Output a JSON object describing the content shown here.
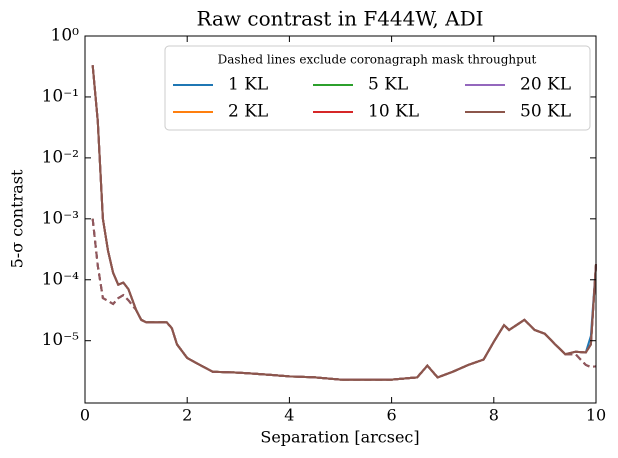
{
  "chart_data": {
    "type": "line",
    "title": "Raw contrast in F444W, ADI",
    "xlabel": "Separation [arcsec]",
    "ylabel": "5-σ contrast",
    "legend_title": "Dashed lines exclude coronagraph mask throughput",
    "legend_loc": "upper right",
    "legend_ncol": 3,
    "yscale": "log",
    "xlim": [
      0,
      10
    ],
    "xticks": [
      0,
      2,
      4,
      6,
      8,
      10
    ],
    "ylim": [
      9.5e-07,
      1
    ],
    "yticks": [
      {
        "value": 1,
        "label": "10⁰"
      },
      {
        "value": 0.1,
        "label": "10⁻¹"
      },
      {
        "value": 0.01,
        "label": "10⁻²"
      },
      {
        "value": 0.001,
        "label": "10⁻³"
      },
      {
        "value": 0.0001,
        "label": "10⁻⁴"
      },
      {
        "value": 1e-05,
        "label": "10⁻⁵"
      }
    ],
    "x": [
      0.15,
      0.25,
      0.35,
      0.45,
      0.55,
      0.65,
      0.75,
      0.85,
      1.0,
      1.1,
      1.2,
      1.4,
      1.6,
      1.7,
      1.8,
      2.0,
      2.2,
      2.5,
      3,
      3.5,
      4,
      4.5,
      5,
      5.5,
      6,
      6.5,
      6.7,
      6.9,
      7.2,
      7.5,
      7.8,
      8.0,
      8.2,
      8.3,
      8.6,
      8.8,
      9.0,
      9.2,
      9.4,
      9.6,
      9.8,
      9.9,
      10.0
    ],
    "series": [
      {
        "name": "1 KL",
        "color": "#1f77b4",
        "values": [
          0.33,
          0.04,
          0.001,
          0.0003,
          0.00013,
          8.3e-05,
          9e-05,
          7e-05,
          3.2e-05,
          2.2e-05,
          2e-05,
          2e-05,
          2e-05,
          1.6e-05,
          8.7e-06,
          5.2e-06,
          4.2e-06,
          3.1e-06,
          3e-06,
          2.8e-06,
          2.6e-06,
          2.5e-06,
          2.3e-06,
          2.3e-06,
          2.3e-06,
          2.5e-06,
          3.9e-06,
          2.5e-06,
          3.1e-06,
          4e-06,
          4.9e-06,
          9.6e-06,
          1.8e-05,
          1.5e-05,
          2.2e-05,
          1.5e-05,
          1.3e-05,
          8.7e-06,
          6e-06,
          6.6e-06,
          6.4e-06,
          1.2e-05,
          0.00018
        ],
        "dashed_values": [
          0.001,
          0.00017,
          5e-05,
          4.5e-05,
          4e-05,
          5e-05,
          5.6e-05,
          4.6e-05,
          3.2e-05,
          2.2e-05,
          2e-05,
          2e-05,
          2e-05,
          1.6e-05,
          8.7e-06,
          5.2e-06,
          4.2e-06,
          3.1e-06,
          3e-06,
          2.8e-06,
          2.6e-06,
          2.5e-06,
          2.3e-06,
          2.3e-06,
          2.3e-06,
          2.5e-06,
          3.9e-06,
          2.5e-06,
          3.1e-06,
          4e-06,
          4.9e-06,
          9.6e-06,
          1.8e-05,
          1.5e-05,
          2.2e-05,
          1.5e-05,
          1.3e-05,
          8.7e-06,
          6e-06,
          6e-06,
          4e-06,
          3.7e-06,
          3.8e-06
        ]
      },
      {
        "name": "2 KL",
        "color": "#ff7f0e",
        "values": [
          0.33,
          0.04,
          0.001,
          0.0003,
          0.00013,
          8.3e-05,
          9e-05,
          7e-05,
          3.2e-05,
          2.2e-05,
          2e-05,
          2e-05,
          2e-05,
          1.6e-05,
          8.7e-06,
          5.2e-06,
          4.2e-06,
          3.1e-06,
          3e-06,
          2.8e-06,
          2.6e-06,
          2.5e-06,
          2.3e-06,
          2.3e-06,
          2.3e-06,
          2.5e-06,
          3.9e-06,
          2.5e-06,
          3.1e-06,
          4e-06,
          4.9e-06,
          9.6e-06,
          1.8e-05,
          1.5e-05,
          2.2e-05,
          1.5e-05,
          1.3e-05,
          8.7e-06,
          6e-06,
          6.6e-06,
          6.4e-06,
          8.7e-06,
          0.00018
        ],
        "dashed_values": [
          0.001,
          0.00017,
          5e-05,
          4.5e-05,
          4e-05,
          5e-05,
          5.6e-05,
          4.6e-05,
          3.2e-05,
          2.2e-05,
          2e-05,
          2e-05,
          2e-05,
          1.6e-05,
          8.7e-06,
          5.2e-06,
          4.2e-06,
          3.1e-06,
          3e-06,
          2.8e-06,
          2.6e-06,
          2.5e-06,
          2.3e-06,
          2.3e-06,
          2.3e-06,
          2.5e-06,
          3.9e-06,
          2.5e-06,
          3.1e-06,
          4e-06,
          4.9e-06,
          9.6e-06,
          1.8e-05,
          1.5e-05,
          2.2e-05,
          1.5e-05,
          1.3e-05,
          8.7e-06,
          6e-06,
          6e-06,
          4e-06,
          3.7e-06,
          3.8e-06
        ]
      },
      {
        "name": "5 KL",
        "color": "#2ca02c",
        "values": [
          0.33,
          0.04,
          0.001,
          0.0003,
          0.00013,
          8.3e-05,
          9e-05,
          7e-05,
          3.2e-05,
          2.2e-05,
          2e-05,
          2e-05,
          2e-05,
          1.6e-05,
          8.7e-06,
          5.2e-06,
          4.2e-06,
          3.1e-06,
          3e-06,
          2.8e-06,
          2.6e-06,
          2.5e-06,
          2.3e-06,
          2.3e-06,
          2.3e-06,
          2.5e-06,
          3.9e-06,
          2.5e-06,
          3.1e-06,
          4e-06,
          4.9e-06,
          9.6e-06,
          1.8e-05,
          1.5e-05,
          2.2e-05,
          1.5e-05,
          1.3e-05,
          8.7e-06,
          6e-06,
          6.6e-06,
          6.4e-06,
          8.7e-06,
          0.00018
        ],
        "dashed_values": [
          0.001,
          0.00017,
          5e-05,
          4.5e-05,
          4e-05,
          5e-05,
          5.6e-05,
          4.6e-05,
          3.2e-05,
          2.2e-05,
          2e-05,
          2e-05,
          2e-05,
          1.6e-05,
          8.7e-06,
          5.2e-06,
          4.2e-06,
          3.1e-06,
          3e-06,
          2.8e-06,
          2.6e-06,
          2.5e-06,
          2.3e-06,
          2.3e-06,
          2.3e-06,
          2.5e-06,
          3.9e-06,
          2.5e-06,
          3.1e-06,
          4e-06,
          4.9e-06,
          9.6e-06,
          1.8e-05,
          1.5e-05,
          2.2e-05,
          1.5e-05,
          1.3e-05,
          8.7e-06,
          6e-06,
          6e-06,
          4e-06,
          3.7e-06,
          3.8e-06
        ]
      },
      {
        "name": "10 KL",
        "color": "#d62728",
        "values": [
          0.33,
          0.04,
          0.001,
          0.0003,
          0.00013,
          8.3e-05,
          9e-05,
          7e-05,
          3.2e-05,
          2.2e-05,
          2e-05,
          2e-05,
          2e-05,
          1.6e-05,
          8.7e-06,
          5.2e-06,
          4.2e-06,
          3.1e-06,
          3e-06,
          2.8e-06,
          2.6e-06,
          2.5e-06,
          2.3e-06,
          2.3e-06,
          2.3e-06,
          2.5e-06,
          3.9e-06,
          2.5e-06,
          3.1e-06,
          4e-06,
          4.9e-06,
          9.6e-06,
          1.8e-05,
          1.5e-05,
          2.2e-05,
          1.5e-05,
          1.3e-05,
          8.7e-06,
          6e-06,
          6.6e-06,
          6.4e-06,
          8.7e-06,
          0.00018
        ],
        "dashed_values": [
          0.001,
          0.00017,
          5e-05,
          4.5e-05,
          4e-05,
          5e-05,
          5.6e-05,
          4.6e-05,
          3.2e-05,
          2.2e-05,
          2e-05,
          2e-05,
          2e-05,
          1.6e-05,
          8.7e-06,
          5.2e-06,
          4.2e-06,
          3.1e-06,
          3e-06,
          2.8e-06,
          2.6e-06,
          2.5e-06,
          2.3e-06,
          2.3e-06,
          2.3e-06,
          2.5e-06,
          3.9e-06,
          2.5e-06,
          3.1e-06,
          4e-06,
          4.9e-06,
          9.6e-06,
          1.8e-05,
          1.5e-05,
          2.2e-05,
          1.5e-05,
          1.3e-05,
          8.7e-06,
          6e-06,
          6e-06,
          4e-06,
          3.7e-06,
          3.8e-06
        ]
      },
      {
        "name": "20 KL",
        "color": "#9467bd",
        "values": [
          0.33,
          0.04,
          0.001,
          0.0003,
          0.00013,
          8.3e-05,
          9e-05,
          7e-05,
          3.2e-05,
          2.2e-05,
          2e-05,
          2e-05,
          2e-05,
          1.6e-05,
          8.7e-06,
          5.2e-06,
          4.2e-06,
          3.1e-06,
          3e-06,
          2.8e-06,
          2.6e-06,
          2.5e-06,
          2.3e-06,
          2.3e-06,
          2.3e-06,
          2.5e-06,
          3.9e-06,
          2.5e-06,
          3.1e-06,
          4e-06,
          4.9e-06,
          9.6e-06,
          1.8e-05,
          1.5e-05,
          2.2e-05,
          1.5e-05,
          1.3e-05,
          8.7e-06,
          6e-06,
          6.6e-06,
          6.4e-06,
          8.7e-06,
          0.00018
        ],
        "dashed_values": [
          0.001,
          0.00017,
          5e-05,
          4.5e-05,
          4e-05,
          5e-05,
          5.6e-05,
          4.6e-05,
          3.2e-05,
          2.2e-05,
          2e-05,
          2e-05,
          2e-05,
          1.6e-05,
          8.7e-06,
          5.2e-06,
          4.2e-06,
          3.1e-06,
          3e-06,
          2.8e-06,
          2.6e-06,
          2.5e-06,
          2.3e-06,
          2.3e-06,
          2.3e-06,
          2.5e-06,
          3.9e-06,
          2.5e-06,
          3.1e-06,
          4e-06,
          4.9e-06,
          9.6e-06,
          1.8e-05,
          1.5e-05,
          2.2e-05,
          1.5e-05,
          1.3e-05,
          8.7e-06,
          6e-06,
          6e-06,
          4e-06,
          3.7e-06,
          3.8e-06
        ]
      },
      {
        "name": "50 KL",
        "color": "#8c564b",
        "values": [
          0.33,
          0.04,
          0.001,
          0.0003,
          0.00013,
          8.3e-05,
          9e-05,
          7e-05,
          3.2e-05,
          2.2e-05,
          2e-05,
          2e-05,
          2e-05,
          1.6e-05,
          8.7e-06,
          5.2e-06,
          4.2e-06,
          3.1e-06,
          3e-06,
          2.8e-06,
          2.6e-06,
          2.5e-06,
          2.3e-06,
          2.3e-06,
          2.3e-06,
          2.5e-06,
          3.9e-06,
          2.5e-06,
          3.1e-06,
          4e-06,
          4.9e-06,
          9.6e-06,
          1.8e-05,
          1.5e-05,
          2.2e-05,
          1.5e-05,
          1.3e-05,
          8.7e-06,
          6e-06,
          6.6e-06,
          6.4e-06,
          8.7e-06,
          0.00018
        ],
        "dashed_values": [
          0.001,
          0.00017,
          5e-05,
          4.5e-05,
          4e-05,
          5e-05,
          5.6e-05,
          4.6e-05,
          3.2e-05,
          2.2e-05,
          2e-05,
          2e-05,
          2e-05,
          1.6e-05,
          8.7e-06,
          5.2e-06,
          4.2e-06,
          3.1e-06,
          3e-06,
          2.8e-06,
          2.6e-06,
          2.5e-06,
          2.3e-06,
          2.3e-06,
          2.3e-06,
          2.5e-06,
          3.9e-06,
          2.5e-06,
          3.1e-06,
          4e-06,
          4.9e-06,
          9.6e-06,
          1.8e-05,
          1.5e-05,
          2.2e-05,
          1.5e-05,
          1.3e-05,
          8.7e-06,
          6e-06,
          6e-06,
          4e-06,
          3.7e-06,
          3.8e-06
        ]
      }
    ]
  }
}
